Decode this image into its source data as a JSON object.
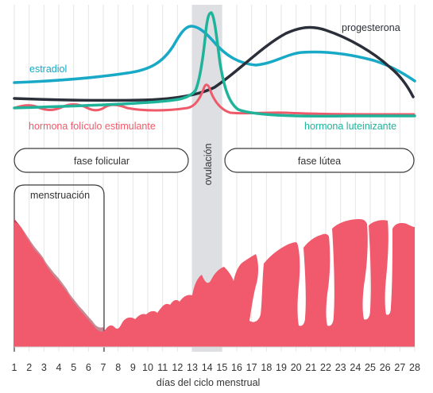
{
  "hormones": {
    "progesterone": {
      "label": "progesterona",
      "color": "#2b2f3a"
    },
    "estradiol": {
      "label": "estradiol",
      "color": "#17a9c6"
    },
    "fsh": {
      "label": "hormona folículo estimulante",
      "color": "#ef5a6a"
    },
    "lh": {
      "label": "hormona luteinizante",
      "color": "#1fb39a"
    }
  },
  "phases": {
    "follicular": "fase folicular",
    "ovulation": "ovulación",
    "luteal": "fase lútea",
    "menstruation": "menstruación"
  },
  "colors": {
    "endometrium": "#f05a6c",
    "ovulation_band": "#d9dce0",
    "grid": "#e6e6e6",
    "phase_border": "#3a3a3a"
  },
  "axis": {
    "xlabel": "días del ciclo menstrual",
    "days": [
      "1",
      "2",
      "3",
      "4",
      "5",
      "6",
      "7",
      "8",
      "9",
      "10",
      "11",
      "12",
      "13",
      "14",
      "15",
      "16",
      "17",
      "18",
      "19",
      "20",
      "21",
      "22",
      "23",
      "24",
      "25",
      "26",
      "27",
      "28"
    ]
  }
}
